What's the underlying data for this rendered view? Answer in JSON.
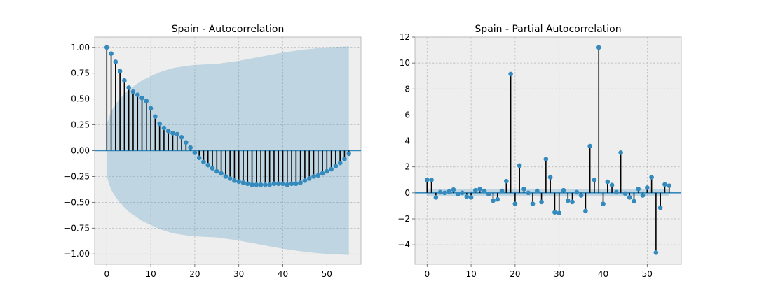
{
  "chart_data": [
    {
      "type": "stem",
      "title": "Spain - Autocorrelation",
      "xlim": [
        -2.75,
        57.75
      ],
      "ylim": [
        -1.1,
        1.1
      ],
      "xticks": [
        0,
        10,
        20,
        30,
        40,
        50
      ],
      "yticks": [
        1.0,
        0.75,
        0.5,
        0.25,
        0.0,
        -0.25,
        -0.5,
        -0.75,
        -1.0
      ],
      "ytick_labels": [
        "1.00",
        "0.75",
        "0.50",
        "0.25",
        "0.00",
        "−0.25",
        "−0.50",
        "−0.75",
        "−1.00"
      ],
      "grid": true,
      "lags": [
        0,
        1,
        2,
        3,
        4,
        5,
        6,
        7,
        8,
        9,
        10,
        11,
        12,
        13,
        14,
        15,
        16,
        17,
        18,
        19,
        20,
        21,
        22,
        23,
        24,
        25,
        26,
        27,
        28,
        29,
        30,
        31,
        32,
        33,
        34,
        35,
        36,
        37,
        38,
        39,
        40,
        41,
        42,
        43,
        44,
        45,
        46,
        47,
        48,
        49,
        50,
        51,
        52,
        53,
        54,
        55
      ],
      "values": [
        1.0,
        0.94,
        0.86,
        0.77,
        0.68,
        0.61,
        0.57,
        0.54,
        0.51,
        0.48,
        0.41,
        0.33,
        0.26,
        0.22,
        0.19,
        0.17,
        0.16,
        0.13,
        0.08,
        0.03,
        -0.02,
        -0.07,
        -0.11,
        -0.14,
        -0.17,
        -0.2,
        -0.22,
        -0.25,
        -0.27,
        -0.29,
        -0.3,
        -0.31,
        -0.32,
        -0.33,
        -0.33,
        -0.33,
        -0.33,
        -0.33,
        -0.32,
        -0.32,
        -0.32,
        -0.33,
        -0.32,
        -0.32,
        -0.31,
        -0.29,
        -0.27,
        -0.25,
        -0.24,
        -0.22,
        -0.2,
        -0.18,
        -0.15,
        -0.12,
        -0.08,
        -0.03
      ],
      "confidence_band": {
        "lags": [
          0,
          1,
          2,
          3,
          4,
          5,
          6,
          7,
          8,
          9,
          10,
          12,
          15,
          18,
          20,
          25,
          30,
          35,
          40,
          45,
          50,
          55
        ],
        "upper": [
          0.25,
          0.38,
          0.45,
          0.5,
          0.55,
          0.59,
          0.62,
          0.65,
          0.68,
          0.7,
          0.72,
          0.76,
          0.8,
          0.82,
          0.83,
          0.84,
          0.87,
          0.91,
          0.95,
          0.98,
          1.0,
          1.01
        ]
      }
    },
    {
      "type": "stem",
      "title": "Spain - Partial Autocorrelation",
      "xlim": [
        -2.75,
        57.75
      ],
      "ylim": [
        -5.5,
        12.0
      ],
      "xticks": [
        0,
        10,
        20,
        30,
        40,
        50
      ],
      "yticks": [
        12,
        10,
        8,
        6,
        4,
        2,
        0,
        -2,
        -4
      ],
      "ytick_labels": [
        "12",
        "10",
        "8",
        "6",
        "4",
        "2",
        "0",
        "−2",
        "−4"
      ],
      "grid": true,
      "lags": [
        0,
        1,
        2,
        3,
        4,
        5,
        6,
        7,
        8,
        9,
        10,
        11,
        12,
        13,
        14,
        15,
        16,
        17,
        18,
        19,
        20,
        21,
        22,
        23,
        24,
        25,
        26,
        27,
        28,
        29,
        30,
        31,
        32,
        33,
        34,
        35,
        36,
        37,
        38,
        39,
        40,
        41,
        42,
        43,
        44,
        45,
        46,
        47,
        48,
        49,
        50,
        51,
        52,
        53,
        54,
        55
      ],
      "values": [
        1.0,
        1.0,
        -0.35,
        0.05,
        0.0,
        0.1,
        0.25,
        -0.1,
        0.0,
        -0.3,
        -0.35,
        0.2,
        0.3,
        0.15,
        -0.1,
        -0.6,
        -0.5,
        0.15,
        0.9,
        9.15,
        -0.85,
        2.1,
        0.3,
        0.0,
        -0.85,
        0.15,
        -0.7,
        2.6,
        1.2,
        -1.5,
        -1.55,
        0.2,
        -0.6,
        -0.7,
        0.05,
        -0.2,
        -1.4,
        3.6,
        1.0,
        11.2,
        -0.85,
        0.85,
        0.6,
        0.05,
        3.1,
        -0.05,
        -0.35,
        -0.65,
        0.3,
        -0.2,
        0.4,
        1.2,
        -4.6,
        -1.15,
        0.65,
        0.55
      ],
      "confidence_band": {
        "lags": [
          0,
          55
        ],
        "upper": [
          0.27,
          0.27
        ]
      }
    }
  ]
}
